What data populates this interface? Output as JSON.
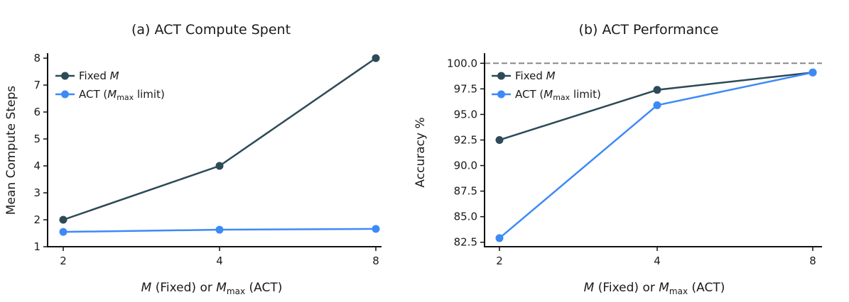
{
  "chart_data": [
    {
      "type": "line",
      "title": "(a) ACT Compute Spent",
      "xlabel": "M (Fixed) or M_max (ACT)",
      "ylabel": "Mean Compute Steps",
      "x": [
        2,
        4,
        8
      ],
      "x_tick_labels": [
        "2",
        "4",
        "8"
      ],
      "x_scale": "categorical-log2",
      "ylim": [
        1,
        8
      ],
      "y_ticks": [
        "1",
        "2",
        "3",
        "4",
        "5",
        "6",
        "7",
        "8"
      ],
      "grid": false,
      "legend_position": "top-left",
      "series": [
        {
          "name": "Fixed M",
          "color": "#2d4a57",
          "values": [
            2.0,
            4.0,
            8.0
          ]
        },
        {
          "name": "ACT (M_max limit)",
          "color": "#3d8af7",
          "values": [
            1.55,
            1.63,
            1.66
          ]
        }
      ]
    },
    {
      "type": "line",
      "title": "(b) ACT Performance",
      "xlabel": "M (Fixed) or M_max (ACT)",
      "ylabel": "Accuracy %",
      "x": [
        2,
        4,
        8
      ],
      "x_tick_labels": [
        "2",
        "4",
        "8"
      ],
      "x_scale": "categorical-log2",
      "ylim": [
        82.5,
        100.0
      ],
      "y_ticks": [
        "82.5",
        "85.0",
        "87.5",
        "90.0",
        "92.5",
        "95.0",
        "97.5",
        "100.0"
      ],
      "reference_line": {
        "y": 100.0,
        "style": "dashed",
        "color": "#888888"
      },
      "grid": false,
      "legend_position": "top-left",
      "series": [
        {
          "name": "Fixed M",
          "color": "#2d4a57",
          "values": [
            92.5,
            97.4,
            99.1
          ]
        },
        {
          "name": "ACT (M_max limit)",
          "color": "#3d8af7",
          "values": [
            82.9,
            95.9,
            99.1
          ]
        }
      ]
    }
  ],
  "labels": {
    "a_title": "(a) ACT Compute Spent",
    "b_title": "(b) ACT Performance",
    "a_ylabel": "Mean Compute Steps",
    "b_ylabel": "Accuracy %",
    "xlabel_m": "M",
    "xlabel_mid": " (Fixed) or ",
    "xlabel_m2": "M",
    "xlabel_sub": "max",
    "xlabel_end": " (ACT)",
    "legend_fixed": "Fixed ",
    "legend_fixed_m": "M",
    "legend_act_pre": "ACT (",
    "legend_act_m": "M",
    "legend_act_sub": "max",
    "legend_act_post": " limit)"
  }
}
